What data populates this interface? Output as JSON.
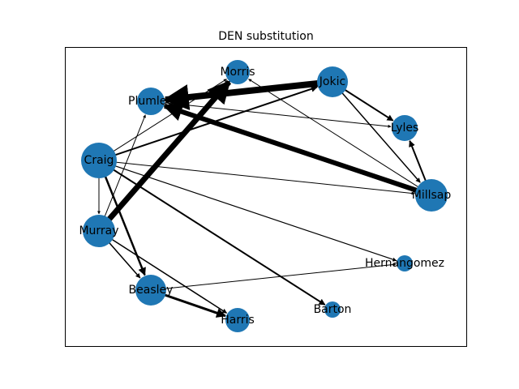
{
  "title": "DEN substitution",
  "colors": {
    "node": "#1f77b4",
    "edge": "#000000",
    "frame": "#000000"
  },
  "nodes": [
    {
      "id": "Morris",
      "label": "Morris"
    },
    {
      "id": "Jokic",
      "label": "Jokic"
    },
    {
      "id": "Plumlee",
      "label": "Plumlee"
    },
    {
      "id": "Lyles",
      "label": "Lyles"
    },
    {
      "id": "Craig",
      "label": "Craig"
    },
    {
      "id": "Millsap",
      "label": "Millsap"
    },
    {
      "id": "Murray",
      "label": "Murray"
    },
    {
      "id": "Hernangomez",
      "label": "Hernangomez"
    },
    {
      "id": "Beasley",
      "label": "Beasley"
    },
    {
      "id": "Barton",
      "label": "Barton"
    },
    {
      "id": "Harris",
      "label": "Harris"
    }
  ],
  "edges": [
    {
      "source": "Jokic",
      "target": "Plumlee",
      "weight": 8
    },
    {
      "source": "Millsap",
      "target": "Plumlee",
      "weight": 6
    },
    {
      "source": "Murray",
      "target": "Morris",
      "weight": 7
    },
    {
      "source": "Jokic",
      "target": "Lyles",
      "weight": 2
    },
    {
      "source": "Jokic",
      "target": "Millsap",
      "weight": 1.5
    },
    {
      "source": "Millsap",
      "target": "Lyles",
      "weight": 2
    },
    {
      "source": "Millsap",
      "target": "Morris",
      "weight": 1
    },
    {
      "source": "Plumlee",
      "target": "Lyles",
      "weight": 1
    },
    {
      "source": "Craig",
      "target": "Morris",
      "weight": 1
    },
    {
      "source": "Craig",
      "target": "Jokic",
      "weight": 2
    },
    {
      "source": "Craig",
      "target": "Millsap",
      "weight": 1
    },
    {
      "source": "Craig",
      "target": "Hernangomez",
      "weight": 1.2
    },
    {
      "source": "Craig",
      "target": "Barton",
      "weight": 2
    },
    {
      "source": "Craig",
      "target": "Beasley",
      "weight": 2.5
    },
    {
      "source": "Craig",
      "target": "Murray",
      "weight": 1
    },
    {
      "source": "Murray",
      "target": "Plumlee",
      "weight": 1
    },
    {
      "source": "Murray",
      "target": "Beasley",
      "weight": 1.5
    },
    {
      "source": "Murray",
      "target": "Harris",
      "weight": 1.5
    },
    {
      "source": "Beasley",
      "target": "Hernangomez",
      "weight": 1
    },
    {
      "source": "Beasley",
      "target": "Harris",
      "weight": 3
    }
  ]
}
